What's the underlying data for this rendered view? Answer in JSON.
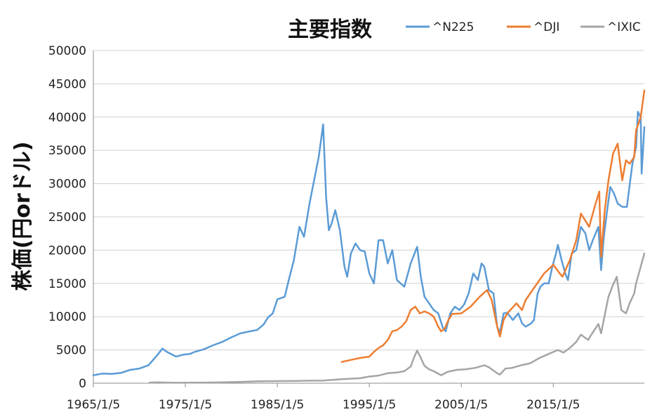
{
  "chart_data": {
    "type": "line",
    "title": "主要指数",
    "xlabel": "",
    "ylabel": "株価(円orドル)",
    "x_tick_labels": [
      "1965/1/5",
      "1975/1/5",
      "1985/1/5",
      "1995/1/5",
      "2005/1/5",
      "2015/1/5"
    ],
    "x_tick_years": [
      1965,
      1975,
      1985,
      1995,
      2005,
      2015
    ],
    "xlim": [
      1965.0,
      2024.9
    ],
    "ylim": [
      0,
      50000
    ],
    "y_ticks": [
      0,
      5000,
      10000,
      15000,
      20000,
      25000,
      30000,
      35000,
      40000,
      45000,
      50000
    ],
    "grid": "horizontal",
    "legend_position": "top-right",
    "series": [
      {
        "name": "^N225",
        "color": "#5B9BD5",
        "x": [
          1965.0,
          1966.0,
          1967.0,
          1968.0,
          1969.0,
          1970.0,
          1971.0,
          1972.0,
          1972.5,
          1973.0,
          1974.0,
          1974.8,
          1975.5,
          1976.0,
          1977.0,
          1978.0,
          1979.0,
          1980.0,
          1981.0,
          1982.0,
          1982.8,
          1983.5,
          1984.0,
          1984.5,
          1985.0,
          1985.8,
          1986.3,
          1986.8,
          1987.4,
          1987.9,
          1988.5,
          1989.0,
          1989.5,
          1989.98,
          1990.3,
          1990.6,
          1990.9,
          1991.3,
          1991.8,
          1992.3,
          1992.6,
          1993.0,
          1993.5,
          1994.0,
          1994.5,
          1995.0,
          1995.5,
          1996.0,
          1996.5,
          1997.0,
          1997.5,
          1998.0,
          1998.8,
          1999.5,
          2000.2,
          2000.6,
          2001.0,
          2001.5,
          2002.0,
          2002.5,
          2003.0,
          2003.3,
          2003.8,
          2004.3,
          2004.8,
          2005.3,
          2005.8,
          2006.3,
          2006.8,
          2007.2,
          2007.5,
          2008.0,
          2008.5,
          2008.9,
          2009.2,
          2009.6,
          2010.0,
          2010.6,
          2011.2,
          2011.6,
          2012.0,
          2012.6,
          2012.9,
          2013.3,
          2013.6,
          2014.0,
          2014.5,
          2014.9,
          2015.3,
          2015.5,
          2015.9,
          2016.3,
          2016.6,
          2017.0,
          2017.5,
          2018.0,
          2018.5,
          2018.9,
          2019.3,
          2019.9,
          2020.2,
          2020.5,
          2020.9,
          2021.2,
          2021.6,
          2022.0,
          2022.5,
          2023.0,
          2023.6,
          2024.0,
          2024.2,
          2024.5,
          2024.6,
          2024.9
        ],
        "values": [
          1200,
          1450,
          1400,
          1550,
          2000,
          2200,
          2700,
          4300,
          5200,
          4700,
          4000,
          4300,
          4400,
          4700,
          5100,
          5700,
          6200,
          6900,
          7500,
          7800,
          8000,
          8800,
          9900,
          10500,
          12600,
          13000,
          15800,
          18500,
          23500,
          22000,
          27000,
          30500,
          34000,
          38900,
          28000,
          23000,
          24000,
          26000,
          23000,
          17500,
          16000,
          19500,
          21000,
          20000,
          19800,
          16500,
          15000,
          21500,
          21500,
          18000,
          20000,
          15500,
          14500,
          18000,
          20500,
          16000,
          13000,
          12000,
          11000,
          10500,
          8300,
          7800,
          10500,
          11500,
          11000,
          11800,
          13500,
          16500,
          15500,
          18000,
          17500,
          14000,
          13500,
          8500,
          7600,
          10500,
          10600,
          9500,
          10500,
          9000,
          8500,
          9000,
          9500,
          13500,
          14500,
          15000,
          15000,
          17500,
          19500,
          20800,
          18500,
          16500,
          15500,
          19500,
          20000,
          23500,
          22500,
          20000,
          21500,
          23500,
          17000,
          22000,
          26500,
          29500,
          28500,
          27000,
          26500,
          26500,
          33000,
          35500,
          40800,
          40000,
          31500,
          38500
        ]
      },
      {
        "name": "^DJI",
        "color": "#ED7D31",
        "x": [
          1992.0,
          1993.0,
          1994.0,
          1995.0,
          1995.5,
          1996.0,
          1996.5,
          1997.0,
          1997.5,
          1998.0,
          1998.5,
          1999.0,
          1999.5,
          2000.0,
          2000.5,
          2001.0,
          2001.5,
          2002.0,
          2002.5,
          2002.8,
          2003.2,
          2003.6,
          2004.0,
          2005.0,
          2006.0,
          2007.0,
          2007.8,
          2008.3,
          2008.9,
          2009.2,
          2009.6,
          2010.0,
          2011.0,
          2011.6,
          2012.0,
          2013.0,
          2014.0,
          2015.0,
          2015.7,
          2016.0,
          2016.8,
          2017.5,
          2018.0,
          2018.9,
          2019.5,
          2020.0,
          2020.2,
          2020.6,
          2021.0,
          2021.5,
          2022.0,
          2022.5,
          2022.9,
          2023.3,
          2023.8,
          2024.0,
          2024.5,
          2024.9
        ],
        "values": [
          3200,
          3500,
          3800,
          4000,
          4700,
          5300,
          5700,
          6500,
          7800,
          8000,
          8500,
          9300,
          11000,
          11500,
          10500,
          10800,
          10500,
          10000,
          8500,
          7800,
          8200,
          9500,
          10400,
          10500,
          11500,
          13000,
          14000,
          12500,
          8500,
          7000,
          9500,
          10500,
          12000,
          11000,
          12500,
          14500,
          16500,
          17800,
          16500,
          16000,
          18500,
          21500,
          25500,
          23500,
          26500,
          28800,
          19000,
          26000,
          30500,
          34500,
          36000,
          30500,
          33500,
          33000,
          34000,
          38000,
          40000,
          44000
        ]
      },
      {
        "name": "^IXIC",
        "color": "#A5A5A5",
        "x": [
          1971.1,
          1972.0,
          1973.0,
          1974.0,
          1975.0,
          1977.0,
          1979.0,
          1981.0,
          1983.0,
          1985.0,
          1987.0,
          1988.5,
          1990.0,
          1992.0,
          1994.0,
          1995.0,
          1996.0,
          1997.0,
          1998.0,
          1998.8,
          1999.5,
          1999.9,
          2000.2,
          2000.6,
          2001.0,
          2001.5,
          2002.0,
          2002.8,
          2003.5,
          2004.5,
          2005.5,
          2006.5,
          2007.5,
          2008.0,
          2008.9,
          2009.2,
          2009.8,
          2010.5,
          2011.5,
          2012.5,
          2013.5,
          2014.5,
          2015.5,
          2016.1,
          2016.8,
          2017.5,
          2018.0,
          2018.8,
          2019.0,
          2019.9,
          2020.2,
          2020.7,
          2021.0,
          2021.5,
          2021.9,
          2022.4,
          2022.9,
          2023.3,
          2023.8,
          2024.0,
          2024.5,
          2024.9
        ],
        "values": [
          100,
          130,
          100,
          60,
          80,
          100,
          130,
          200,
          300,
          320,
          350,
          380,
          400,
          600,
          750,
          1000,
          1150,
          1500,
          1600,
          1800,
          2500,
          4000,
          4900,
          3800,
          2600,
          2100,
          1800,
          1200,
          1700,
          2000,
          2100,
          2300,
          2700,
          2400,
          1500,
          1300,
          2200,
          2300,
          2700,
          3000,
          3800,
          4400,
          5000,
          4600,
          5300,
          6200,
          7300,
          6500,
          7000,
          8900,
          7500,
          11000,
          13000,
          14800,
          16000,
          11000,
          10500,
          12000,
          13500,
          15000,
          17500,
          19500
        ]
      }
    ]
  }
}
